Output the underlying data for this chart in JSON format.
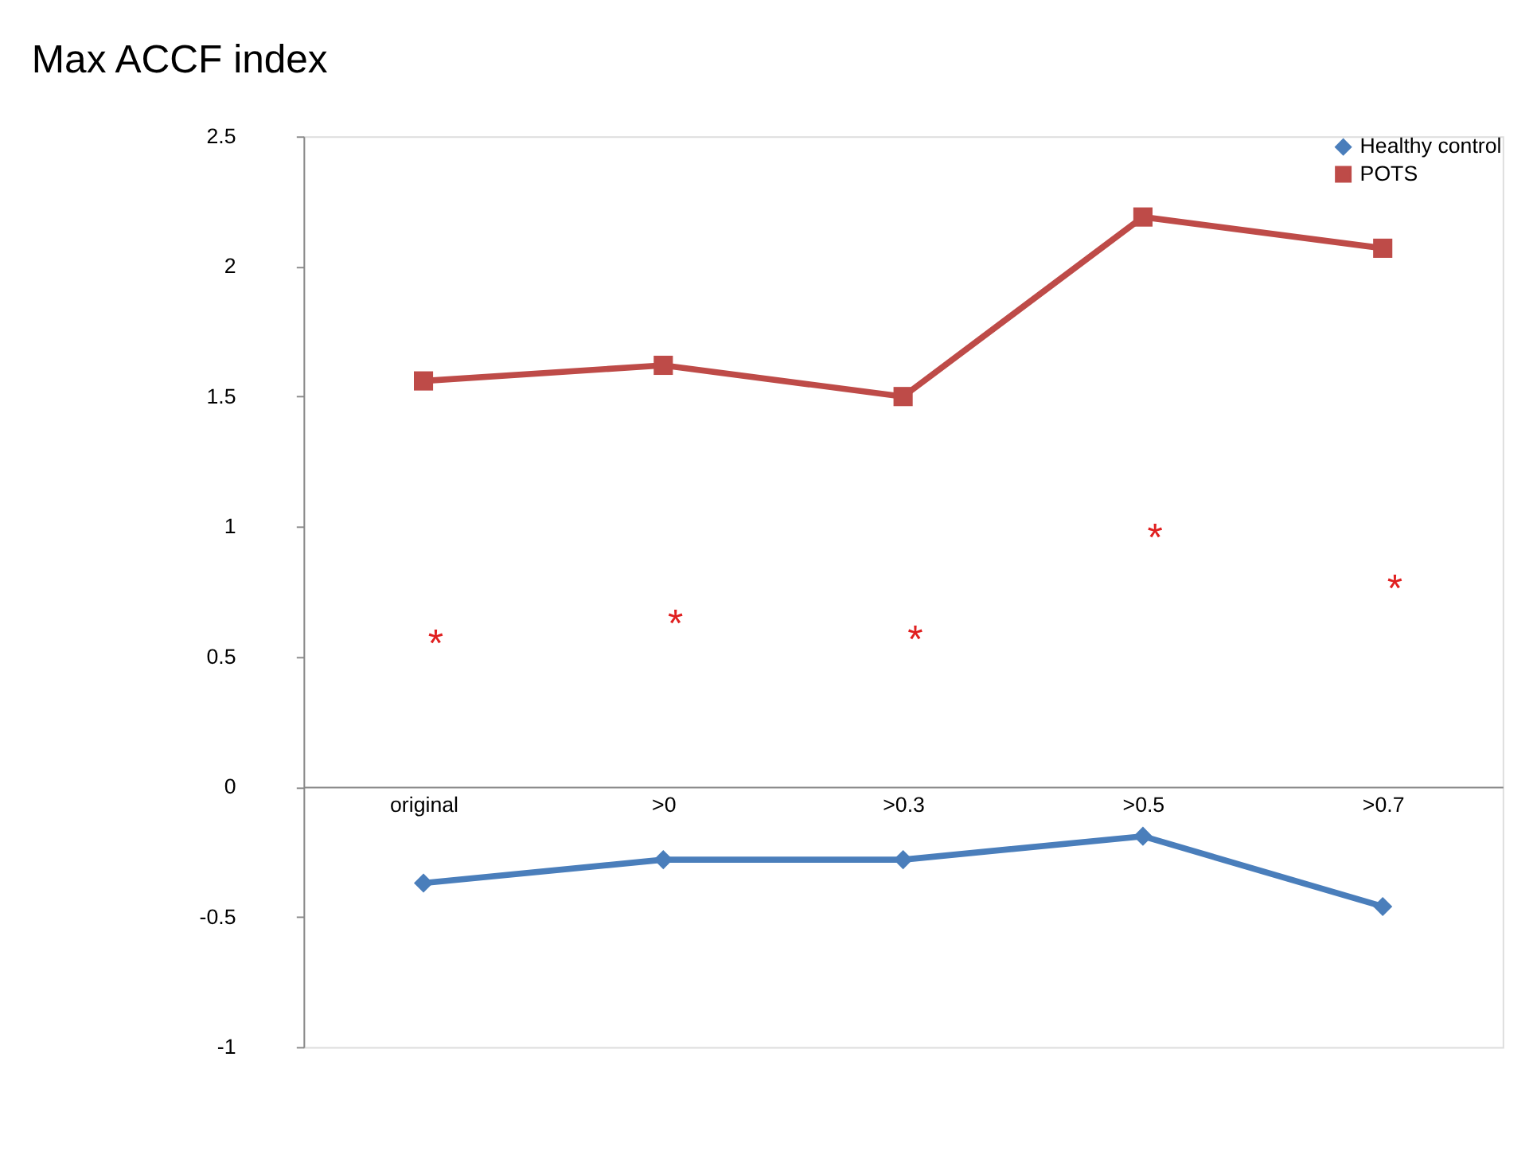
{
  "chart_data": {
    "type": "line",
    "title": "Max ACCF index",
    "categories": [
      "original",
      ">0",
      ">0.3",
      ">0.5",
      ">0.7"
    ],
    "series": [
      {
        "name": "Healthy control",
        "color": "#4a7ebb",
        "marker": "diamond",
        "values": [
          -0.37,
          -0.28,
          -0.28,
          -0.19,
          -0.46
        ]
      },
      {
        "name": "POTS",
        "color": "#be4b48",
        "marker": "square",
        "values": [
          1.56,
          1.62,
          1.5,
          2.19,
          2.07
        ]
      }
    ],
    "ylim": [
      -1,
      2.5
    ],
    "yticks": [
      -1,
      -0.5,
      0,
      0.5,
      1,
      1.5,
      2,
      2.5
    ],
    "grid": false,
    "legend": "top right",
    "line_style": "solid",
    "annotations": [
      "*",
      "*",
      "*",
      "*",
      "*"
    ]
  }
}
